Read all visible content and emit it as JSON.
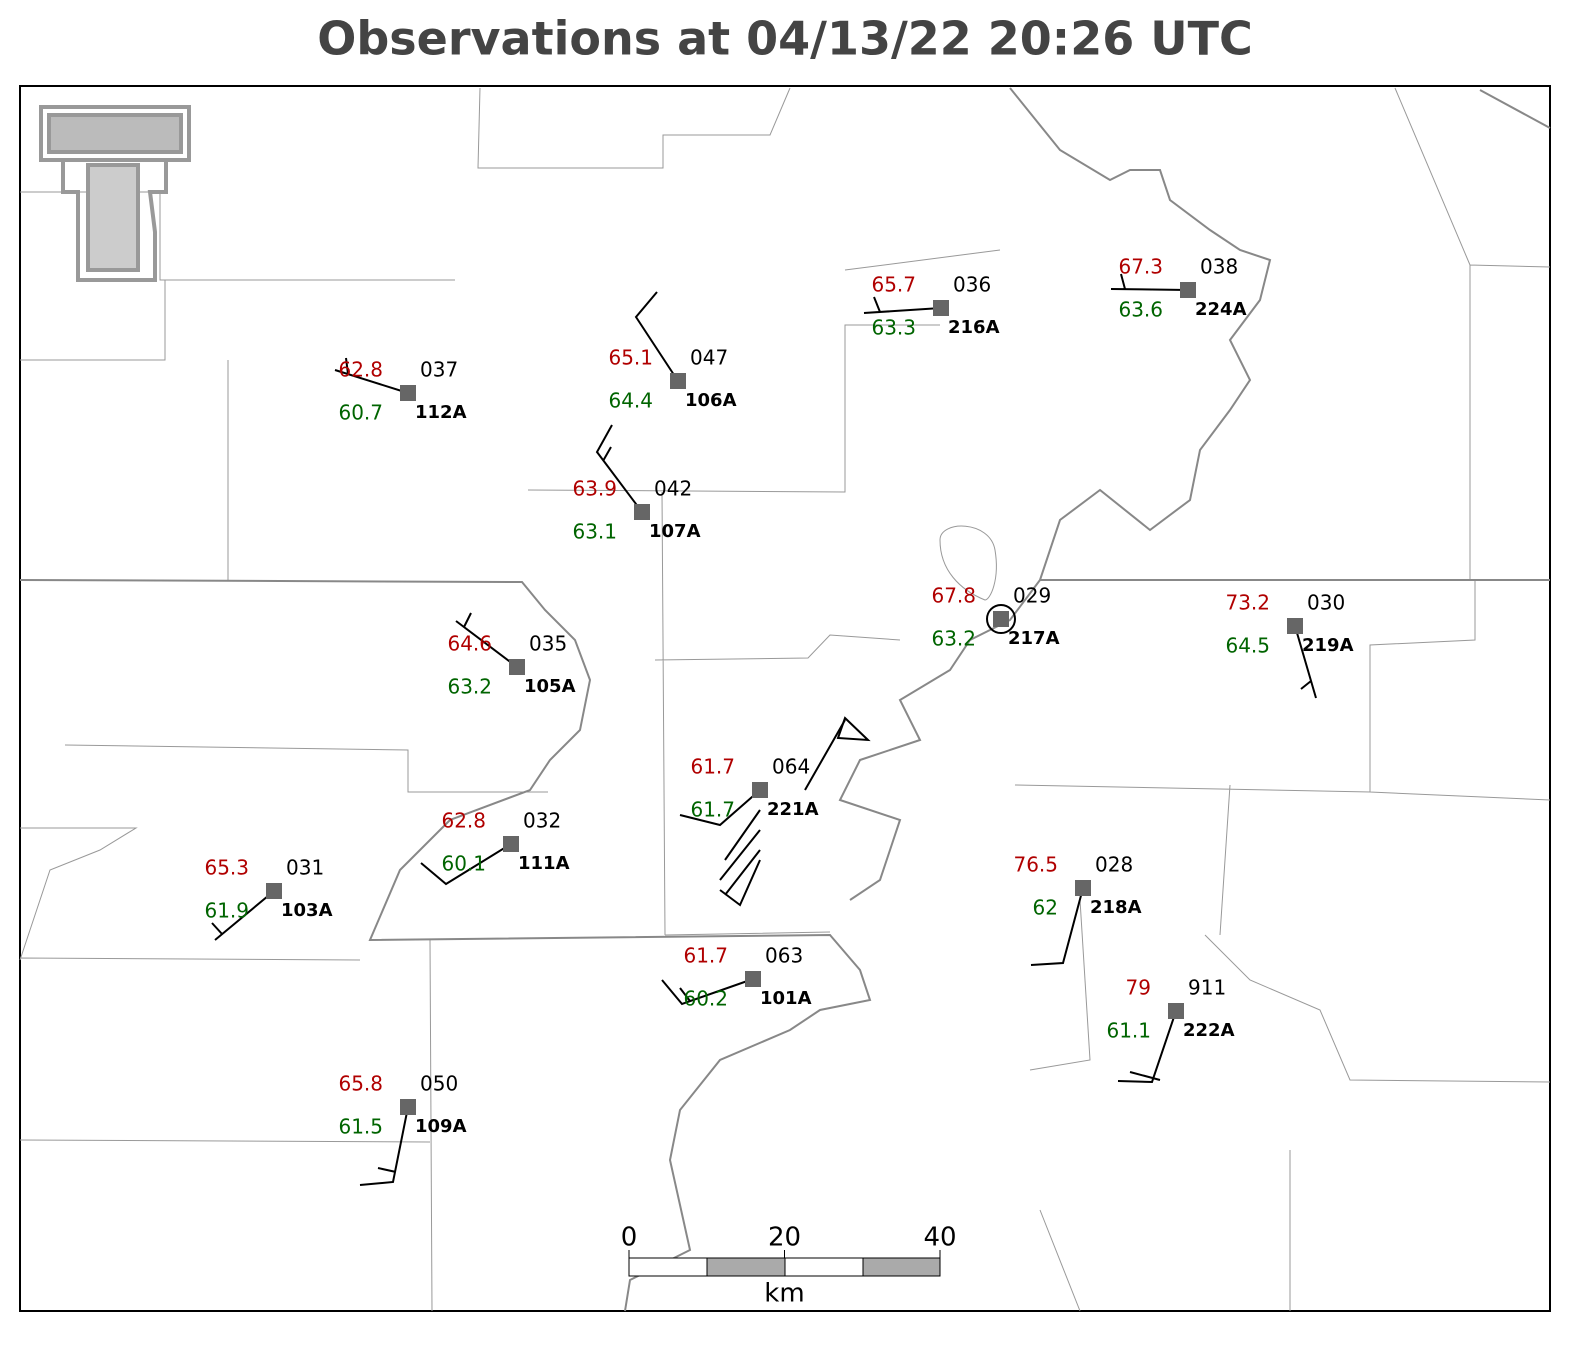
{
  "title": "Observations at 04/13/22 20:26 UTC",
  "stations": [
    {
      "temperature": 62.8,
      "dewpoint": 60.7,
      "code": "037",
      "id": "112A"
    },
    {
      "temperature": 65.1,
      "dewpoint": 64.4,
      "code": "047",
      "id": "106A"
    },
    {
      "temperature": 63.9,
      "dewpoint": 63.1,
      "code": "042",
      "id": "107A"
    },
    {
      "temperature": 65.7,
      "dewpoint": 63.3,
      "code": "036",
      "id": "216A"
    },
    {
      "temperature": 67.3,
      "dewpoint": 63.6,
      "code": "038",
      "id": "224A"
    },
    {
      "temperature": 67.8,
      "dewpoint": 63.2,
      "code": "029",
      "id": "217A"
    },
    {
      "temperature": 73.2,
      "dewpoint": 64.5,
      "code": "030",
      "id": "219A"
    },
    {
      "temperature": 64.6,
      "dewpoint": 63.2,
      "code": "035",
      "id": "105A"
    },
    {
      "temperature": 62.8,
      "dewpoint": 60.1,
      "code": "032",
      "id": "111A"
    },
    {
      "temperature": 65.3,
      "dewpoint": 61.9,
      "code": "031",
      "id": "103A"
    },
    {
      "temperature": 61.7,
      "dewpoint": 61.7,
      "code": "064",
      "id": "221A"
    },
    {
      "temperature": 76.5,
      "dewpoint": 62.0,
      "code": "028",
      "id": "218A"
    },
    {
      "temperature": 61.7,
      "dewpoint": 60.2,
      "code": "063",
      "id": "101A"
    },
    {
      "temperature": 79.0,
      "dewpoint": 61.1,
      "code": "911",
      "id": "222A"
    },
    {
      "temperature": 65.8,
      "dewpoint": 61.5,
      "code": "050",
      "id": "109A"
    }
  ],
  "scale_bar": {
    "ticks": [
      0,
      20,
      40
    ],
    "unit": "km"
  }
}
